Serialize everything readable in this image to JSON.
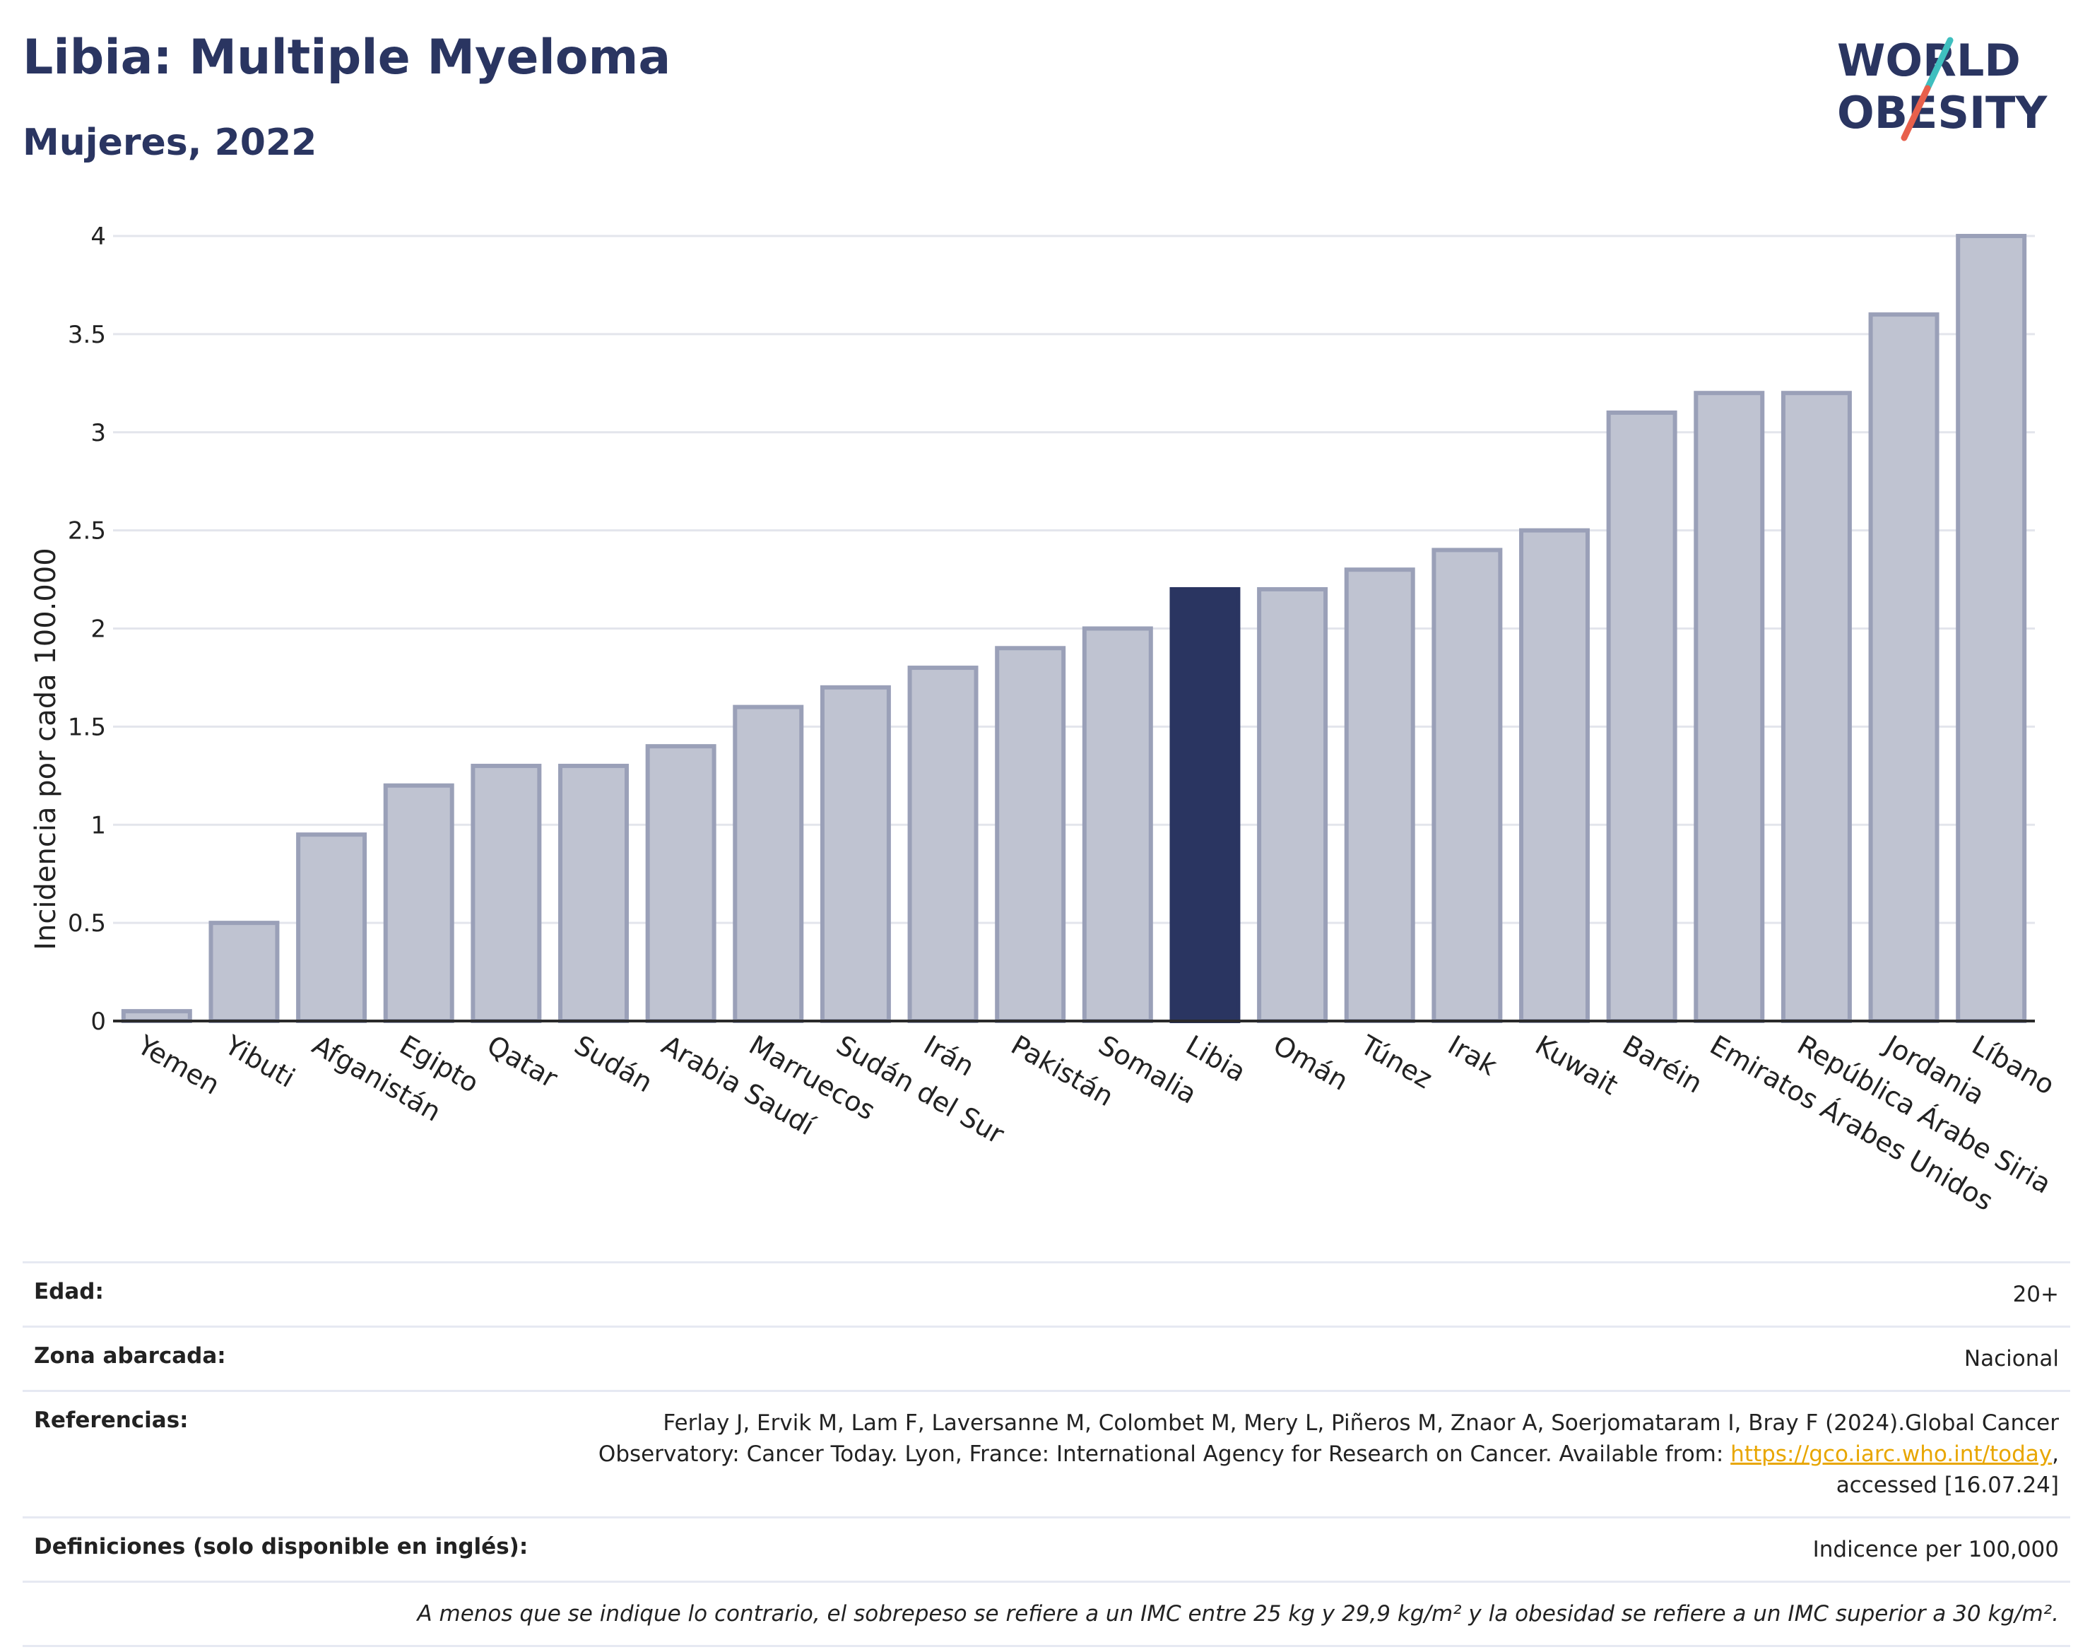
{
  "header": {
    "title": "Libia: Multiple Myeloma",
    "subtitle": "Mujeres, 2022"
  },
  "logo": {
    "line1": "WORLD",
    "line2": "OBESITY",
    "colors": {
      "text": "#2a3561",
      "slash_top": "#3fbfbf",
      "slash_bottom": "#e8604c"
    }
  },
  "colors": {
    "bar_default": "#bfc3d1",
    "bar_default_stroke": "#9aa0b8",
    "bar_highlight": "#2a3561",
    "grid": "#e3e5ec",
    "axis": "#2a2a2a"
  },
  "chart_data": {
    "type": "bar",
    "ylabel": "Incidencia por cada 100.000",
    "xlabel": "",
    "ylim": [
      0,
      4
    ],
    "yticks": [
      0,
      0.5,
      1,
      1.5,
      2,
      2.5,
      3,
      3.5,
      4
    ],
    "yticklabels": [
      "0",
      "0.5",
      "1",
      "1.5",
      "2",
      "2.5",
      "3",
      "3.5",
      "4"
    ],
    "grid": true,
    "highlight": "Libia",
    "categories": [
      "Yemen",
      "Yibuti",
      "Afganistán",
      "Egipto",
      "Qatar",
      "Sudán",
      "Arabia Saudí",
      "Marruecos",
      "Sudán del Sur",
      "Irán",
      "Pakistán",
      "Somalia",
      "Libia",
      "Omán",
      "Túnez",
      "Irak",
      "Kuwait",
      "Baréin",
      "Emiratos Árabes Unidos",
      "República Árabe Siria",
      "Jordania",
      "Líbano"
    ],
    "values": [
      0.05,
      0.5,
      0.95,
      1.2,
      1.3,
      1.3,
      1.4,
      1.6,
      1.7,
      1.8,
      1.9,
      2.0,
      2.2,
      2.2,
      2.3,
      2.4,
      2.5,
      3.1,
      3.2,
      3.2,
      3.6,
      4.0
    ]
  },
  "info": {
    "rows": [
      {
        "label": "Edad:",
        "value": "20+"
      },
      {
        "label": "Zona abarcada:",
        "value": "Nacional"
      },
      {
        "label": "Referencias:",
        "value_before": "Ferlay J, Ervik M, Lam F, Laversanne M, Colombet M, Mery L, Piñeros M, Znaor A, Soerjomataram I, Bray F (2024).Global Cancer Observatory: Cancer Today. Lyon, France: International Agency for Research on Cancer. Available from: ",
        "link": "https://gco.iarc.who.int/today",
        "value_after": ", accessed [16.07.24]"
      },
      {
        "label": "Definiciones (solo disponible en inglés):",
        "value": "Indicence per 100,000"
      }
    ],
    "note": "A menos que se indique lo contrario, el sobrepeso se refiere a un IMC entre 25 kg y 29,9 kg/m² y la obesidad se refiere a un IMC superior a 30 kg/m²."
  }
}
